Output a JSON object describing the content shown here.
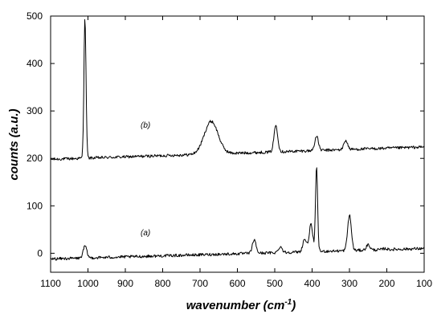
{
  "chart_data": {
    "type": "line",
    "xlabel_main": "wavenumber (cm",
    "xlabel_sup": "-1",
    "xlabel_tail": ")",
    "ylabel": "counts (a.u.)",
    "xlim": [
      1100,
      100
    ],
    "ylim": [
      -40,
      500
    ],
    "x_ticks": [
      1100,
      1000,
      900,
      800,
      700,
      600,
      500,
      400,
      300,
      200,
      100
    ],
    "y_ticks": [
      0,
      100,
      200,
      300,
      400,
      500
    ],
    "grid": false,
    "series": [
      {
        "label": "(b)",
        "baseline_low": 198,
        "baseline_high": 224,
        "peaks": [
          {
            "x": 1008,
            "y": 495
          },
          {
            "x": 670,
            "y": 278
          },
          {
            "x": 497,
            "y": 270
          },
          {
            "x": 388,
            "y": 246
          },
          {
            "x": 310,
            "y": 238
          }
        ]
      },
      {
        "label": "(a)",
        "baseline_low": -12,
        "baseline_high": 10,
        "peaks": [
          {
            "x": 1008,
            "y": 15
          },
          {
            "x": 555,
            "y": 28
          },
          {
            "x": 485,
            "y": 14
          },
          {
            "x": 420,
            "y": 30
          },
          {
            "x": 403,
            "y": 60
          },
          {
            "x": 388,
            "y": 180
          },
          {
            "x": 300,
            "y": 80
          },
          {
            "x": 250,
            "y": 18
          },
          {
            "x": 205,
            "y": 10
          }
        ]
      }
    ]
  }
}
